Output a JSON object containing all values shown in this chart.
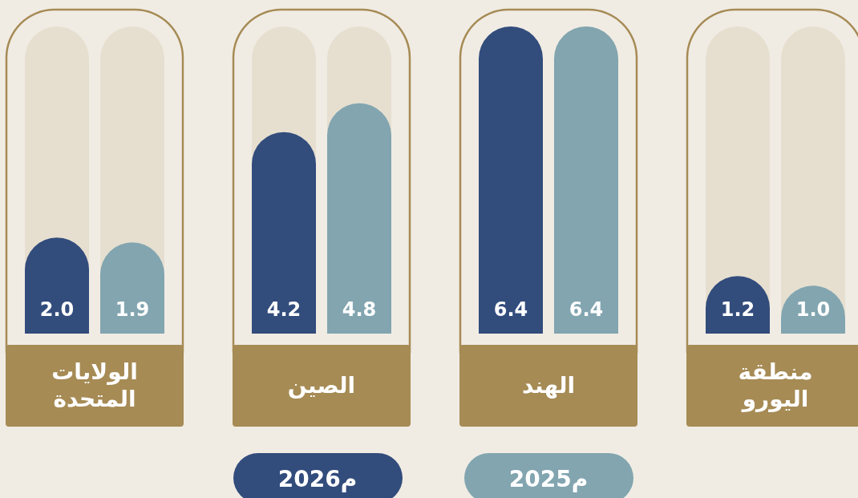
{
  "chart_data": {
    "type": "bar",
    "categories": [
      "الولايات المتحدة",
      "الصين",
      "الهند",
      "منطقة اليورو"
    ],
    "series": [
      {
        "name": "2026م",
        "color": "#324c7c",
        "values": [
          2.0,
          4.2,
          6.4,
          1.2
        ],
        "value_labels": [
          "2.0",
          "4.2",
          "6.4",
          "1.2"
        ]
      },
      {
        "name": "2025م",
        "color": "#82a5b0",
        "values": [
          1.9,
          4.8,
          6.4,
          1.0
        ],
        "value_labels": [
          "1.9",
          "4.8",
          "6.4",
          "1.0"
        ]
      }
    ],
    "legend": "bottom"
  }
}
